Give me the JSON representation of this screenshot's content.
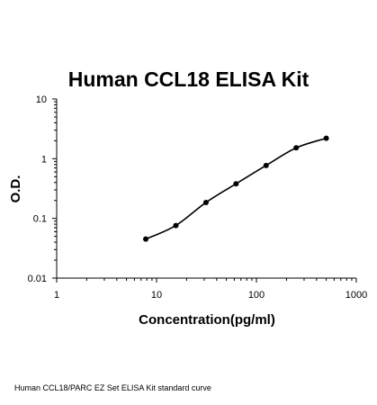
{
  "chart_data": {
    "type": "scatter",
    "title": "Human CCL18 ELISA Kit",
    "xlabel": "Concentration(pg/ml)",
    "ylabel": "O.D.",
    "xscale": "log",
    "yscale": "log",
    "xlim": [
      1,
      1000
    ],
    "ylim": [
      0.01,
      10
    ],
    "x_ticks": [
      1,
      10,
      100,
      1000
    ],
    "x_tick_labels": [
      "1",
      "10",
      "100",
      "1000"
    ],
    "y_ticks": [
      0.01,
      0.1,
      1,
      10
    ],
    "y_tick_labels": [
      "0.01",
      "0.1",
      "1",
      "10"
    ],
    "grid": false,
    "legend": "none",
    "series": [
      {
        "x": [
          7.8,
          15.6,
          31.25,
          62.5,
          125,
          250,
          500
        ],
        "y": [
          0.045,
          0.076,
          0.185,
          0.38,
          0.77,
          1.52,
          2.2
        ]
      }
    ],
    "colors": {
      "line": "#000000",
      "marker": "#000000"
    }
  },
  "caption": "Human CCL18/PARC EZ Set ELISA Kit standard curve"
}
